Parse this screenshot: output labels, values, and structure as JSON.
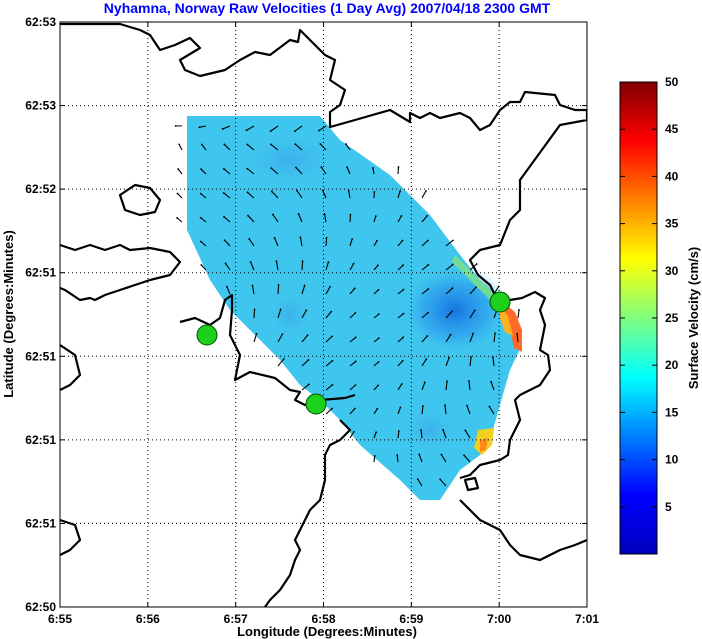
{
  "chart_data": {
    "type": "heatmap",
    "title": "Nyhamna, Norway Raw Velocities (1 Day Avg) 2007/04/18 2300 GMT",
    "xlabel": "Longitude (Degrees:Minutes)",
    "ylabel": "Latitude (Degrees:Minutes)",
    "x_ticks": [
      "6:55",
      "6:56",
      "6:57",
      "6:58",
      "6:59",
      "7:00",
      "7:01"
    ],
    "y_ticks": [
      "62:53",
      "62:53",
      "62:52",
      "62:51",
      "62:51",
      "62:51",
      "62:51",
      "62:50"
    ],
    "colorbar": {
      "label": "Surface Velocity (cm/s)",
      "ticks": [
        5,
        10,
        15,
        20,
        25,
        30,
        35,
        40,
        45,
        50
      ],
      "range": [
        0,
        50
      ],
      "colormap": "jet"
    },
    "grid": true,
    "sites": [
      {
        "x": 6.945,
        "y": 0.36
      },
      {
        "x": 6.965,
        "y": 0.26
      },
      {
        "x": 7.0,
        "y": 0.44
      }
    ],
    "marker_color": "#1bd11b"
  }
}
